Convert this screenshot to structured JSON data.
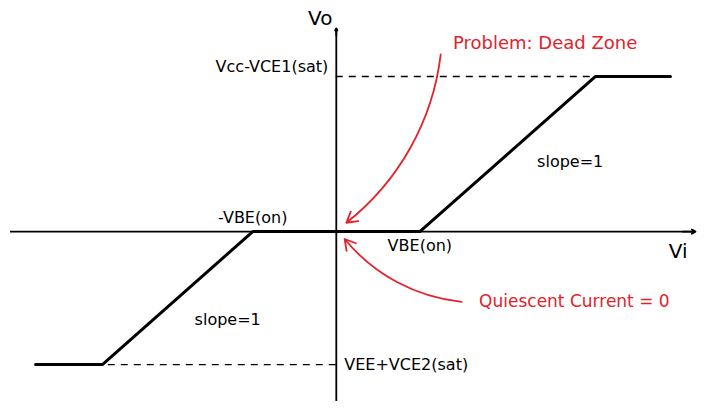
{
  "chart_data": {
    "type": "line",
    "x": [
      -3.6,
      -2.8,
      -1,
      1,
      3.1,
      4.0
    ],
    "values": [
      -1.8,
      -1.8,
      0,
      0,
      2.1,
      2.1
    ],
    "color": "#000000",
    "xlabel": "Vi",
    "ylabel": "Vo",
    "xlim": [
      -3.9,
      4.3
    ],
    "ylim": [
      -2.3,
      2.75
    ],
    "xticks": [
      {
        "value": -1,
        "label": "-VBE(on)"
      },
      {
        "value": 1,
        "label": "VBE(on)"
      }
    ],
    "yticks": [
      {
        "value": 2.1,
        "label": "Vcc-VCE1(sat)"
      },
      {
        "value": -1.8,
        "label": "VEE+VCE2(sat)"
      }
    ],
    "annotations": [
      {
        "text": "Problem: Dead Zone",
        "color": "#e3222b"
      },
      {
        "text": "Quiescent Current = 0",
        "color": "#e3222b"
      },
      {
        "text": "slope=1",
        "color": "#000000"
      },
      {
        "text": "slope=1",
        "color": "#000000"
      }
    ],
    "grid": false
  }
}
